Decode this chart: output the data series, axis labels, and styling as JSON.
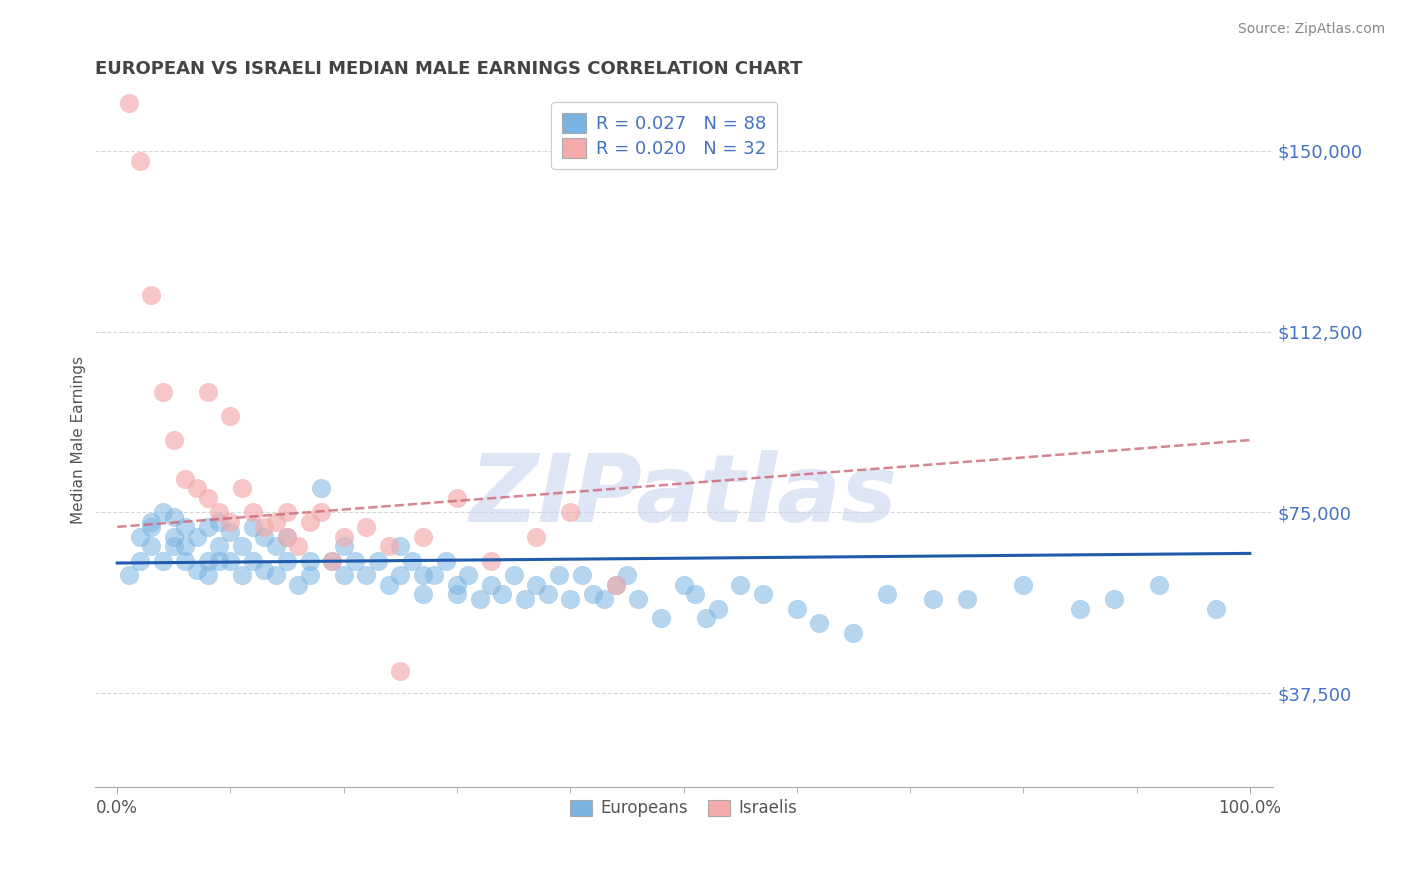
{
  "title": "EUROPEAN VS ISRAELI MEDIAN MALE EARNINGS CORRELATION CHART",
  "source": "Source: ZipAtlas.com",
  "ylabel": "Median Male Earnings",
  "xlim": [
    -0.02,
    1.02
  ],
  "ylim": [
    18000,
    162000
  ],
  "ytick_vals": [
    37500,
    75000,
    112500,
    150000
  ],
  "ytick_labels": [
    "$37,500",
    "$75,000",
    "$112,500",
    "$150,000"
  ],
  "xtick_vals": [
    0.0,
    1.0
  ],
  "xtick_labels": [
    "0.0%",
    "100.0%"
  ],
  "background_color": "#ffffff",
  "grid_color": "#cccccc",
  "blue_scatter_color": "#7ab3e0",
  "pink_scatter_color": "#f4aaaa",
  "blue_line_color": "#1f5baa",
  "pink_line_color": "#cc6677",
  "title_color": "#444444",
  "source_color": "#888888",
  "axis_label_color": "#555555",
  "ytick_color": "#4472c4",
  "watermark_text": "ZIPatlas",
  "watermark_color": "#c8d4ee",
  "legend_blue_r": "0.027",
  "legend_blue_n": "88",
  "legend_pink_r": "0.020",
  "legend_pink_n": "32",
  "bottom_legend_labels": [
    "Europeans",
    "Israelis"
  ],
  "european_x": [
    0.01,
    0.02,
    0.02,
    0.03,
    0.03,
    0.03,
    0.04,
    0.04,
    0.05,
    0.05,
    0.05,
    0.06,
    0.06,
    0.06,
    0.07,
    0.07,
    0.08,
    0.08,
    0.08,
    0.09,
    0.09,
    0.09,
    0.1,
    0.1,
    0.11,
    0.11,
    0.12,
    0.12,
    0.13,
    0.13,
    0.14,
    0.14,
    0.15,
    0.15,
    0.16,
    0.17,
    0.17,
    0.18,
    0.19,
    0.2,
    0.2,
    0.21,
    0.22,
    0.23,
    0.24,
    0.25,
    0.25,
    0.26,
    0.27,
    0.27,
    0.28,
    0.29,
    0.3,
    0.3,
    0.31,
    0.32,
    0.33,
    0.34,
    0.35,
    0.36,
    0.37,
    0.38,
    0.39,
    0.4,
    0.41,
    0.42,
    0.43,
    0.44,
    0.45,
    0.46,
    0.48,
    0.5,
    0.51,
    0.52,
    0.53,
    0.55,
    0.57,
    0.6,
    0.62,
    0.65,
    0.68,
    0.72,
    0.75,
    0.8,
    0.85,
    0.88,
    0.92,
    0.97
  ],
  "european_y": [
    62000,
    70000,
    65000,
    72000,
    68000,
    73000,
    75000,
    65000,
    70000,
    68000,
    74000,
    65000,
    72000,
    68000,
    63000,
    70000,
    65000,
    72000,
    62000,
    68000,
    73000,
    65000,
    71000,
    65000,
    68000,
    62000,
    72000,
    65000,
    70000,
    63000,
    68000,
    62000,
    65000,
    70000,
    60000,
    65000,
    62000,
    80000,
    65000,
    68000,
    62000,
    65000,
    62000,
    65000,
    60000,
    62000,
    68000,
    65000,
    62000,
    58000,
    62000,
    65000,
    60000,
    58000,
    62000,
    57000,
    60000,
    58000,
    62000,
    57000,
    60000,
    58000,
    62000,
    57000,
    62000,
    58000,
    57000,
    60000,
    62000,
    57000,
    53000,
    60000,
    58000,
    53000,
    55000,
    60000,
    58000,
    55000,
    52000,
    50000,
    58000,
    57000,
    57000,
    60000,
    55000,
    57000,
    60000,
    55000
  ],
  "israeli_x": [
    0.01,
    0.02,
    0.03,
    0.04,
    0.05,
    0.06,
    0.07,
    0.08,
    0.08,
    0.09,
    0.1,
    0.11,
    0.12,
    0.13,
    0.14,
    0.15,
    0.15,
    0.16,
    0.17,
    0.18,
    0.2,
    0.22,
    0.24,
    0.27,
    0.3,
    0.33,
    0.37,
    0.4,
    0.44,
    0.19,
    0.25,
    0.1
  ],
  "israeli_y": [
    160000,
    148000,
    120000,
    100000,
    90000,
    82000,
    80000,
    78000,
    100000,
    75000,
    73000,
    80000,
    75000,
    72000,
    73000,
    75000,
    70000,
    68000,
    73000,
    75000,
    70000,
    72000,
    68000,
    70000,
    78000,
    65000,
    70000,
    75000,
    60000,
    65000,
    42000,
    95000
  ],
  "eu_line_x0": 0.0,
  "eu_line_x1": 1.0,
  "eu_line_y0": 64500,
  "eu_line_y1": 66500,
  "il_line_x0": 0.0,
  "il_line_x1": 1.0,
  "il_line_y0": 72000,
  "il_line_y1": 90000
}
